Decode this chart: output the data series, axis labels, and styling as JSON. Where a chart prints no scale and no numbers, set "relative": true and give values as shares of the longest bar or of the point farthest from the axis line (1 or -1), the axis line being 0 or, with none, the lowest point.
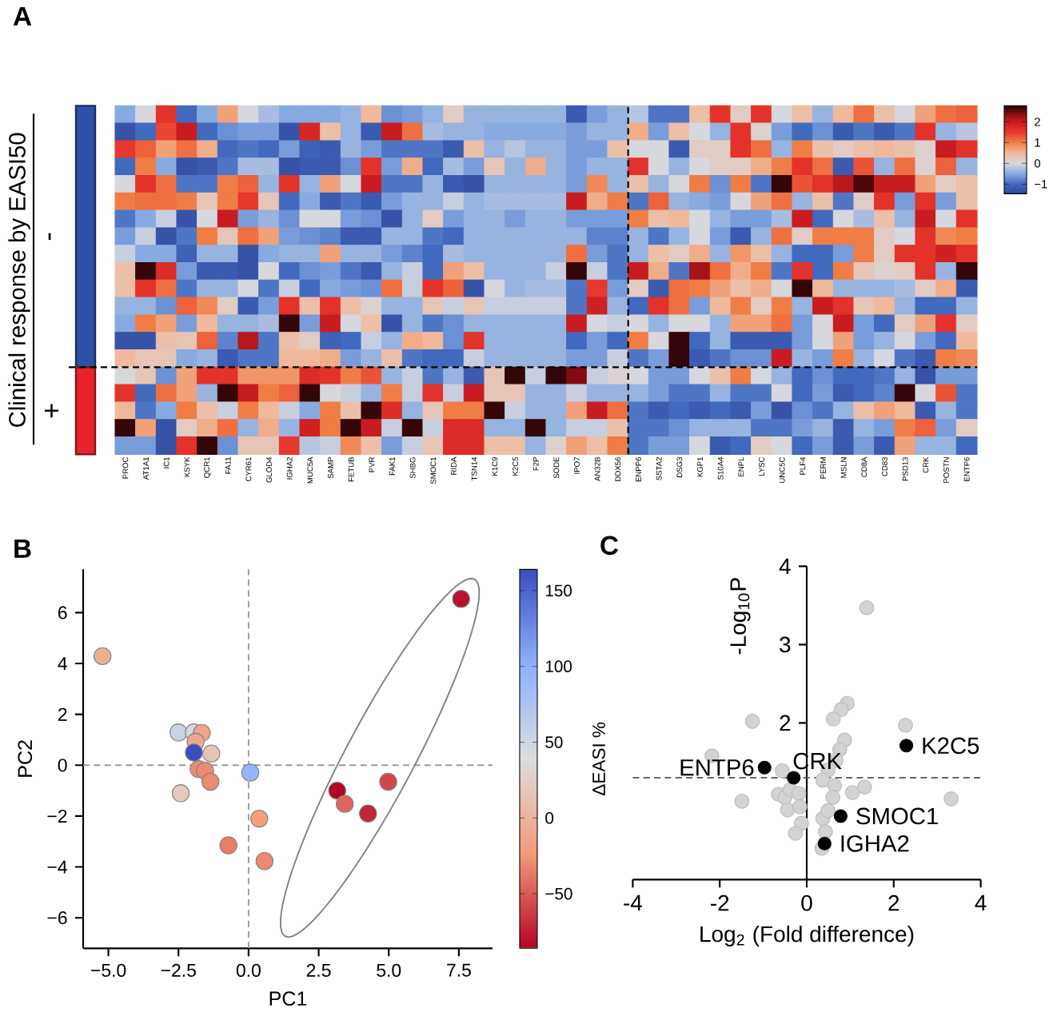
{
  "chart_data": [
    {
      "type": "bar",
      "title": "A",
      "ylabel": "Clinical response by EASI50",
      "categories": [
        null
      ],
      "stacked": true,
      "relative": true,
      "series": [
        {
          "name": "+",
          "color": "#e8232a",
          "values": [
            0.25
          ]
        },
        {
          "name": "-",
          "color": "#2f52a8",
          "values": [
            0.75
          ]
        }
      ]
    },
    {
      "type": "heatmap",
      "categories": [
        "PROC",
        "AT1A1",
        "IC1",
        "KSYK",
        "QCR1",
        "FA11",
        "CYR61",
        "GLOD4",
        "IGHA2",
        "MUC5A",
        "SAMP",
        "FETUB",
        "PVR",
        "FAK1",
        "SHBG",
        "SMOC1",
        "RIDA",
        "TSN14",
        "K1C9",
        "K2C5",
        "F2P",
        "SODE",
        "IPO7",
        "AN32B",
        "DDX56",
        "ENPP6",
        "SSTA2",
        "DSG3",
        "KGP1",
        "S10A4",
        "ENPL",
        "LYSC",
        "UNC5C",
        "PLF4",
        "PERM",
        "MSLN",
        "CD8A",
        "CD83",
        "PSD13",
        "CRK",
        "POSTN",
        "ENTP6"
      ],
      "y_categories": [
        null,
        null,
        null,
        null,
        null,
        null,
        null,
        null,
        null,
        null,
        null,
        null,
        null,
        null,
        null,
        null,
        null,
        null,
        null,
        null
      ],
      "cells": [
        [
          -0.5,
          0.0,
          1.6,
          -1.0,
          -0.5,
          0.7,
          0.0,
          -0.3,
          -0.5,
          -0.5,
          -0.5,
          -0.4,
          0.5,
          -0.7,
          -0.6,
          -0.4,
          0.2,
          -0.4,
          -0.4,
          -0.4,
          -0.4,
          -0.4,
          -1.2,
          -0.6,
          -0.4,
          -0.2,
          -0.9,
          -0.9,
          0.4,
          1.6,
          0.2,
          1.6,
          0.0,
          0.4,
          -0.4,
          0.5,
          1.1,
          0.4,
          0.0,
          0.7,
          1.1,
          1.2
        ],
        [
          -1.3,
          -1.0,
          1.4,
          2.0,
          -1.0,
          -0.7,
          -0.6,
          -0.6,
          -1.3,
          1.8,
          0.4,
          -0.4,
          -1.2,
          2.0,
          1.1,
          -0.3,
          -0.4,
          -0.4,
          -0.5,
          -0.5,
          -0.5,
          -0.5,
          -0.6,
          -0.4,
          -0.4,
          0.6,
          -0.6,
          0.4,
          0.0,
          -0.4,
          1.6,
          0.1,
          -0.6,
          -1.0,
          -0.7,
          -1.2,
          -0.9,
          -1.2,
          -0.9,
          1.6,
          -0.4,
          -0.2
        ],
        [
          1.5,
          1.2,
          0.7,
          1.1,
          0.6,
          -1.0,
          -0.9,
          -1.0,
          -0.6,
          -1.1,
          -1.2,
          -0.4,
          -0.6,
          -0.9,
          -0.9,
          -0.9,
          -1.2,
          0.4,
          -0.4,
          -0.2,
          -0.4,
          -0.4,
          -0.6,
          -0.6,
          0.4,
          0.0,
          0.0,
          -1.2,
          0.2,
          0.2,
          1.6,
          1.1,
          -0.4,
          1.0,
          0.4,
          0.2,
          0.4,
          0.5,
          0.4,
          0.1,
          2.0,
          1.6
        ],
        [
          -1.0,
          1.0,
          -0.5,
          -1.3,
          -1.2,
          -0.9,
          -0.3,
          -0.3,
          -1.3,
          -1.2,
          -1.2,
          -0.7,
          1.6,
          -0.6,
          0.6,
          -1.0,
          -0.3,
          -0.6,
          0.3,
          -0.4,
          0.6,
          -0.4,
          -0.6,
          -0.4,
          -0.4,
          1.6,
          0.0,
          -0.4,
          0.0,
          0.2,
          0.2,
          0.6,
          1.0,
          1.6,
          1.1,
          -1.2,
          1.3,
          -0.4,
          1.1,
          0.1,
          1.2,
          -0.4
        ],
        [
          0.0,
          1.6,
          1.1,
          -0.9,
          -0.9,
          1.0,
          1.2,
          -0.4,
          1.6,
          -0.4,
          0.7,
          0.0,
          2.0,
          -0.9,
          -0.9,
          -0.4,
          -1.2,
          -1.3,
          -0.4,
          -0.4,
          -0.4,
          -0.4,
          -0.6,
          0.9,
          -0.4,
          0.4,
          -0.4,
          0.0,
          1.0,
          -0.7,
          1.0,
          -0.9,
          2.7,
          1.3,
          1.6,
          2.1,
          2.6,
          2.0,
          2.0,
          0.7,
          0.2,
          0.4
        ],
        [
          1.0,
          1.1,
          1.1,
          1.0,
          0.3,
          1.0,
          1.5,
          0.3,
          -1.0,
          -0.5,
          -1.2,
          -0.9,
          -1.2,
          -0.6,
          -0.4,
          -0.4,
          -0.1,
          -0.4,
          -0.3,
          -0.3,
          -0.3,
          -0.3,
          2.0,
          0.6,
          1.0,
          -0.9,
          1.2,
          -0.4,
          -0.5,
          -0.6,
          0.0,
          0.7,
          1.1,
          -0.4,
          0.4,
          -0.9,
          0.2,
          1.6,
          -0.6,
          1.6,
          -0.6,
          0.4
        ],
        [
          -0.9,
          -0.5,
          -0.1,
          -1.3,
          0.0,
          2.0,
          -0.6,
          -0.4,
          -0.7,
          0.0,
          0.0,
          -0.6,
          -0.7,
          -1.3,
          -0.4,
          0.2,
          -0.6,
          -0.4,
          -0.4,
          -0.6,
          -0.4,
          -0.4,
          -0.6,
          -0.6,
          -0.6,
          1.0,
          0.4,
          0.5,
          0.0,
          -0.4,
          -0.6,
          -0.6,
          -0.3,
          2.0,
          -1.0,
          0.0,
          -0.3,
          0.4,
          -0.4,
          2.0,
          0.0,
          1.6
        ],
        [
          -0.6,
          -0.1,
          -1.3,
          -0.9,
          1.0,
          0.3,
          1.1,
          0.7,
          -0.6,
          -0.7,
          -0.8,
          -1.2,
          -1.2,
          -0.4,
          -0.4,
          -0.9,
          -1.0,
          -0.4,
          -0.4,
          -0.4,
          -0.4,
          -0.4,
          -0.4,
          -0.8,
          -0.8,
          -0.4,
          -0.9,
          -0.4,
          0.0,
          -0.6,
          -1.2,
          -0.4,
          1.1,
          0.2,
          1.0,
          1.0,
          1.0,
          0.2,
          0.0,
          1.6,
          0.9,
          1.0
        ],
        [
          -0.1,
          -0.5,
          -0.5,
          -1.1,
          -0.4,
          -0.4,
          -1.3,
          -0.5,
          -0.4,
          -0.4,
          0.7,
          -0.4,
          -0.4,
          -0.6,
          -0.8,
          -1.0,
          -0.3,
          -0.4,
          -0.4,
          -0.4,
          -0.4,
          -0.4,
          1.1,
          -0.6,
          -0.9,
          -0.4,
          0.4,
          0.2,
          0.6,
          -0.4,
          0.8,
          0.4,
          -0.4,
          -1.0,
          -1.0,
          -0.6,
          1.0,
          0.2,
          1.6,
          1.6,
          1.9,
          1.6
        ],
        [
          0.4,
          2.7,
          1.7,
          -0.6,
          -1.2,
          -1.2,
          -1.3,
          0.0,
          -1.0,
          -0.7,
          -0.6,
          -0.9,
          -1.2,
          -0.4,
          -0.1,
          -1.0,
          0.7,
          0.4,
          -0.4,
          -0.4,
          -0.4,
          -0.1,
          2.7,
          -0.1,
          -0.9,
          2.0,
          0.6,
          -0.9,
          2.2,
          1.1,
          0.6,
          1.0,
          -0.9,
          1.6,
          -1.0,
          1.0,
          0.3,
          0.1,
          0.2,
          1.6,
          -0.4,
          2.7
        ],
        [
          0.4,
          1.6,
          1.1,
          -0.9,
          -0.4,
          -0.4,
          0.0,
          -0.9,
          -0.1,
          -1.0,
          -0.5,
          -0.6,
          -0.7,
          1.1,
          -0.1,
          1.6,
          1.2,
          -1.3,
          0.0,
          -0.4,
          -0.3,
          -0.3,
          -0.9,
          1.5,
          -0.6,
          0.2,
          -1.2,
          1.1,
          1.0,
          0.7,
          0.4,
          0.6,
          0.0,
          2.7,
          0.5,
          -0.4,
          -0.4,
          -0.4,
          -0.3,
          0.2,
          0.6,
          -1.2
        ],
        [
          -0.4,
          -0.4,
          -0.7,
          1.2,
          0.9,
          0.2,
          -1.2,
          -0.6,
          1.6,
          0.4,
          1.6,
          0.4,
          0.1,
          -0.4,
          -0.4,
          0.3,
          -0.1,
          0.3,
          -0.1,
          -0.1,
          -0.1,
          -0.1,
          -0.9,
          1.9,
          -0.4,
          -1.0,
          1.6,
          1.1,
          -0.6,
          0.5,
          1.0,
          0.2,
          1.0,
          -0.4,
          2.0,
          1.6,
          0.3,
          0.5,
          -0.4,
          -1.0,
          -1.0,
          -0.4
        ],
        [
          -0.5,
          1.0,
          0.7,
          -0.6,
          0.5,
          -0.4,
          -0.4,
          -0.3,
          2.7,
          -0.6,
          2.0,
          0.0,
          0.4,
          -1.3,
          -0.4,
          -0.9,
          -0.7,
          -0.4,
          -0.4,
          -0.4,
          -0.4,
          -0.4,
          2.0,
          0.0,
          -0.1,
          0.0,
          -0.4,
          0.0,
          0.0,
          -0.4,
          0.7,
          0.7,
          1.1,
          -0.6,
          0.0,
          2.0,
          -0.6,
          -1.0,
          0.2,
          0.7,
          1.6,
          0.2
        ],
        [
          -1.3,
          -1.3,
          0.4,
          0.3,
          1.2,
          -0.8,
          2.1,
          -0.9,
          0.4,
          0.2,
          -1.1,
          -1.0,
          -0.1,
          -0.4,
          0.6,
          0.5,
          -0.7,
          1.6,
          -0.4,
          -0.4,
          -0.4,
          -0.4,
          -1.0,
          -0.6,
          -1.0,
          1.0,
          0.0,
          2.7,
          -1.0,
          -0.4,
          -1.2,
          -1.2,
          -1.2,
          -0.6,
          0.0,
          0.7,
          -0.6,
          -0.4,
          0.0,
          -0.6,
          -1.0,
          0.5
        ],
        [
          0.5,
          0.3,
          0.3,
          -0.5,
          -0.4,
          -1.2,
          -0.9,
          -0.9,
          0.5,
          0.5,
          0.6,
          -0.6,
          -0.4,
          0.4,
          -0.9,
          -1.0,
          -1.0,
          -0.1,
          -0.4,
          -0.4,
          -0.4,
          -0.4,
          -0.6,
          -0.6,
          -0.1,
          -0.9,
          -0.6,
          2.7,
          -1.2,
          -0.9,
          -0.7,
          -0.7,
          2.0,
          -0.4,
          -0.6,
          1.0,
          -0.4,
          0.0,
          -0.9,
          -1.2,
          1.0,
          0.9
        ],
        [
          0.0,
          0.3,
          -0.7,
          0.7,
          1.6,
          1.6,
          0.8,
          0.8,
          0.8,
          1.7,
          1.6,
          1.0,
          1.3,
          -0.4,
          -0.1,
          -0.9,
          -0.4,
          -1.2,
          0.3,
          2.7,
          -0.1,
          2.7,
          2.4,
          -0.1,
          0.1,
          0.0,
          -0.6,
          -0.6,
          0.0,
          0.4,
          1.0,
          0.0,
          -0.4,
          -1.0,
          -0.7,
          -1.0,
          -1.0,
          -0.9,
          -0.4,
          -1.3,
          -0.6,
          -0.6
        ],
        [
          1.6,
          -1.0,
          1.1,
          0.7,
          -0.4,
          2.7,
          2.0,
          1.0,
          1.2,
          2.7,
          0.0,
          -0.1,
          -0.4,
          1.0,
          -0.1,
          1.6,
          -0.1,
          2.0,
          0.3,
          0.3,
          -0.4,
          -0.4,
          -0.1,
          -0.4,
          -0.4,
          -0.4,
          -0.6,
          -0.9,
          -0.9,
          -0.4,
          -0.9,
          -0.9,
          0.0,
          -1.0,
          -0.6,
          -1.2,
          -1.0,
          -0.8,
          2.7,
          0.0,
          1.3,
          -0.9
        ],
        [
          0.5,
          -0.9,
          -0.5,
          1.0,
          0.4,
          -0.1,
          1.0,
          0.5,
          -0.1,
          -0.5,
          1.0,
          0.4,
          2.7,
          1.7,
          -0.4,
          0.3,
          1.0,
          1.0,
          2.7,
          -0.1,
          -0.4,
          -0.4,
          0.7,
          2.0,
          1.1,
          -0.9,
          -1.2,
          -1.0,
          -1.2,
          -1.0,
          -1.2,
          -0.6,
          -1.3,
          -0.7,
          -0.9,
          -0.4,
          0.4,
          0.7,
          0.5,
          -1.2,
          -0.4,
          -0.9
        ],
        [
          2.7,
          0.7,
          -1.3,
          0.2,
          0.6,
          1.1,
          -0.4,
          0.6,
          -0.4,
          1.9,
          1.0,
          2.7,
          2.0,
          -0.1,
          2.7,
          -0.1,
          1.7,
          1.7,
          -0.4,
          -0.4,
          2.7,
          -0.4,
          -0.1,
          -0.1,
          0.4,
          -0.9,
          -0.9,
          -0.7,
          -0.4,
          -0.4,
          -0.4,
          -0.9,
          -0.9,
          -0.6,
          -0.4,
          -1.2,
          -0.4,
          -0.6,
          1.0,
          1.2,
          -0.6,
          0.2
        ],
        [
          -0.6,
          -0.6,
          -1.3,
          1.6,
          2.7,
          -0.7,
          0.3,
          0.3,
          1.5,
          -0.2,
          -0.1,
          0.9,
          0.4,
          -0.6,
          -0.1,
          0.3,
          1.7,
          1.7,
          0.4,
          0.4,
          -0.4,
          0.1,
          0.7,
          0.4,
          1.0,
          -0.9,
          -0.6,
          -0.6,
          0.0,
          -1.2,
          -1.0,
          0.2,
          0.0,
          -1.0,
          -0.6,
          -1.2,
          -0.6,
          -1.2,
          0.7,
          -0.4,
          -0.4,
          -1.0
        ]
      ],
      "clim": [
        -1.46,
        2.77
      ],
      "cticks": [
        {
          "value": -1,
          "label": "−1"
        },
        0,
        1,
        2
      ]
    },
    {
      "type": "scatter",
      "title": "B",
      "xlabel": "PC1",
      "ylabel": "PC2",
      "clabel": "ΔEASI %",
      "xlim": [
        -5.9,
        8.7
      ],
      "ylim": [
        -7.2,
        7.7
      ],
      "xticks": [
        {
          "value": -5,
          "label": "−5.0"
        },
        {
          "value": -2.5,
          "label": "−2.5"
        },
        {
          "value": 0,
          "label": "0.0"
        },
        {
          "value": 2.5,
          "label": "2.5"
        },
        {
          "value": 5,
          "label": "5.0"
        },
        {
          "value": 7.5,
          "label": "7.5"
        }
      ],
      "yticks": [
        {
          "value": -6,
          "label": "−6"
        },
        {
          "value": -4,
          "label": "−4"
        },
        {
          "value": -2,
          "label": "−2"
        },
        0,
        2,
        4,
        6
      ],
      "clim": [
        -86,
        164
      ],
      "cticks": [
        {
          "value": -50,
          "label": "−50"
        },
        0,
        50,
        100,
        150
      ],
      "marker": "circle",
      "x": [
        -5.21,
        -2.5,
        -1.95,
        -1.67,
        -1.89,
        -1.95,
        -1.33,
        -1.78,
        -1.55,
        -1.36,
        -2.42,
        0.06,
        0.38,
        -0.72,
        0.57,
        3.16,
        3.43,
        4.26,
        4.98,
        7.58
      ],
      "values": [
        4.29,
        1.29,
        1.29,
        1.27,
        0.92,
        0.5,
        0.46,
        -0.15,
        -0.22,
        -0.65,
        -1.1,
        -0.29,
        -2.1,
        -3.15,
        -3.77,
        -1.0,
        -1.52,
        -1.9,
        -0.65,
        6.54
      ],
      "cvalues": [
        -5,
        55,
        45,
        -15,
        -10,
        164,
        15,
        -30,
        -30,
        -30,
        20,
        95,
        -20,
        -35,
        -30,
        -86,
        -45,
        -72,
        -58,
        -80
      ],
      "ref_lines": [
        {
          "axis": "x",
          "value": 0,
          "line_style": "dashed",
          "color": "#999999"
        },
        {
          "axis": "y",
          "value": 0,
          "line_style": "dashed",
          "color": "#999999"
        }
      ]
    },
    {
      "type": "scatter",
      "title": "C",
      "xlabel": "Log$_{2}$ (Fold difference)",
      "ylabel": "-Log$_{10}$P",
      "xlim": [
        -4,
        4
      ],
      "ylim": [
        0,
        4
      ],
      "xticks": [
        -4,
        -2,
        0,
        2,
        4
      ],
      "yticks": [
        2,
        3,
        4
      ],
      "marker": "circle",
      "series": [
        {
          "color": "#d3d3d3",
          "x": [
            1.38,
            -1.25,
            2.27,
            0.93,
            0.79,
            0.61,
            0.87,
            0.76,
            0.67,
            0.49,
            -2.18,
            -0.56,
            0.37,
            0.64,
            0.6,
            1.05,
            1.33,
            3.32,
            -1.49,
            -0.65,
            -0.5,
            -0.38,
            -0.18,
            -0.44,
            -0.16,
            -0.12,
            -0.26,
            0.37,
            0.43,
            0.35,
            0.49
          ],
          "values": [
            3.47,
            2.02,
            1.97,
            2.25,
            2.17,
            2.05,
            1.78,
            1.66,
            1.52,
            1.4,
            1.58,
            1.39,
            1.27,
            1.2,
            1.05,
            1.11,
            1.18,
            1.03,
            1.0,
            1.09,
            1.05,
            1.15,
            1.1,
            0.89,
            0.93,
            0.72,
            0.59,
            0.78,
            0.61,
            0.4,
            0.88
          ]
        },
        {
          "color": "#000000",
          "x": [
            2.29,
            -0.97,
            -0.3,
            0.78,
            0.41
          ],
          "values": [
            1.71,
            1.43,
            1.3,
            0.81,
            0.46
          ]
        }
      ],
      "annotations": [
        {
          "text": "K2C5",
          "x": 2.29,
          "y": 1.71
        },
        {
          "text": "ENTP6",
          "x": -0.97,
          "y": 1.43
        },
        {
          "text": "CRK",
          "x": -0.3,
          "y": 1.3
        },
        {
          "text": "SMOC1",
          "x": 0.78,
          "y": 0.81
        },
        {
          "text": "IGHA2",
          "x": 0.41,
          "y": 0.46
        }
      ],
      "ref_lines": [
        {
          "axis": "y",
          "value": 1.3,
          "line_style": "dashed",
          "color": "#555555"
        }
      ]
    }
  ]
}
